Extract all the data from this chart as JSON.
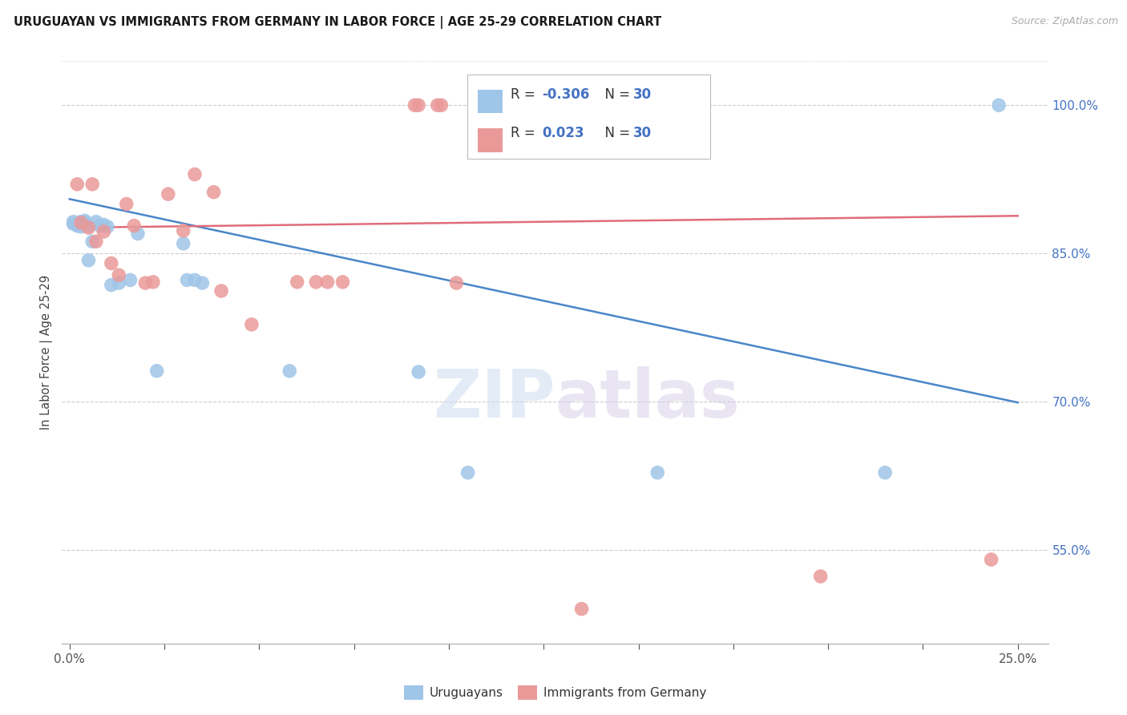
{
  "title": "URUGUAYAN VS IMMIGRANTS FROM GERMANY IN LABOR FORCE | AGE 25-29 CORRELATION CHART",
  "source": "Source: ZipAtlas.com",
  "ylabel": "In Labor Force | Age 25-29",
  "xtick_labels_edge": [
    "0.0%",
    "25.0%"
  ],
  "xtick_vals_edge": [
    0.0,
    0.25
  ],
  "xtick_minor_vals": [
    0.025,
    0.05,
    0.075,
    0.1,
    0.125,
    0.15,
    0.175,
    0.2,
    0.225
  ],
  "ytick_labels": [
    "55.0%",
    "70.0%",
    "85.0%",
    "100.0%"
  ],
  "ytick_vals": [
    0.55,
    0.7,
    0.85,
    1.0
  ],
  "xlim": [
    -0.002,
    0.258
  ],
  "ylim": [
    0.455,
    1.045
  ],
  "blue_R": "-0.306",
  "blue_N": "30",
  "pink_R": "0.023",
  "pink_N": "30",
  "blue_x": [
    0.001,
    0.001,
    0.002,
    0.003,
    0.003,
    0.003,
    0.004,
    0.004,
    0.005,
    0.005,
    0.006,
    0.007,
    0.008,
    0.009,
    0.01,
    0.011,
    0.013,
    0.016,
    0.018,
    0.023,
    0.03,
    0.031,
    0.033,
    0.035,
    0.058,
    0.092,
    0.105,
    0.155,
    0.215,
    0.245
  ],
  "blue_y": [
    0.882,
    0.88,
    0.878,
    0.877,
    0.879,
    0.882,
    0.881,
    0.883,
    0.878,
    0.843,
    0.862,
    0.882,
    0.878,
    0.879,
    0.877,
    0.818,
    0.82,
    0.823,
    0.87,
    0.731,
    0.86,
    0.823,
    0.823,
    0.82,
    0.731,
    0.73,
    0.628,
    0.628,
    0.628,
    1.0
  ],
  "pink_x": [
    0.002,
    0.003,
    0.005,
    0.006,
    0.007,
    0.009,
    0.011,
    0.013,
    0.015,
    0.017,
    0.02,
    0.022,
    0.026,
    0.03,
    0.033,
    0.038,
    0.04,
    0.048,
    0.06,
    0.065,
    0.068,
    0.072,
    0.091,
    0.092,
    0.097,
    0.098,
    0.102,
    0.135,
    0.198,
    0.243
  ],
  "pink_y": [
    0.92,
    0.881,
    0.876,
    0.92,
    0.862,
    0.872,
    0.84,
    0.828,
    0.9,
    0.878,
    0.82,
    0.821,
    0.91,
    0.873,
    0.93,
    0.912,
    0.812,
    0.778,
    0.821,
    0.821,
    0.821,
    0.821,
    1.0,
    1.0,
    1.0,
    1.0,
    0.82,
    0.49,
    0.523,
    0.54
  ],
  "blue_trend_x": [
    0.0,
    0.25
  ],
  "blue_trend_y": [
    0.905,
    0.699
  ],
  "pink_trend_x": [
    0.0,
    0.25
  ],
  "pink_trend_y": [
    0.876,
    0.888
  ],
  "blue_dot_color": "#9fc5e8",
  "pink_dot_color": "#ea9999",
  "blue_line_color": "#4a86c8",
  "pink_line_color": "#e06c7a",
  "grid_color": "#cccccc",
  "right_tick_color": "#4472c4",
  "background": "#ffffff",
  "legend_box_color": "#bbbbbb"
}
